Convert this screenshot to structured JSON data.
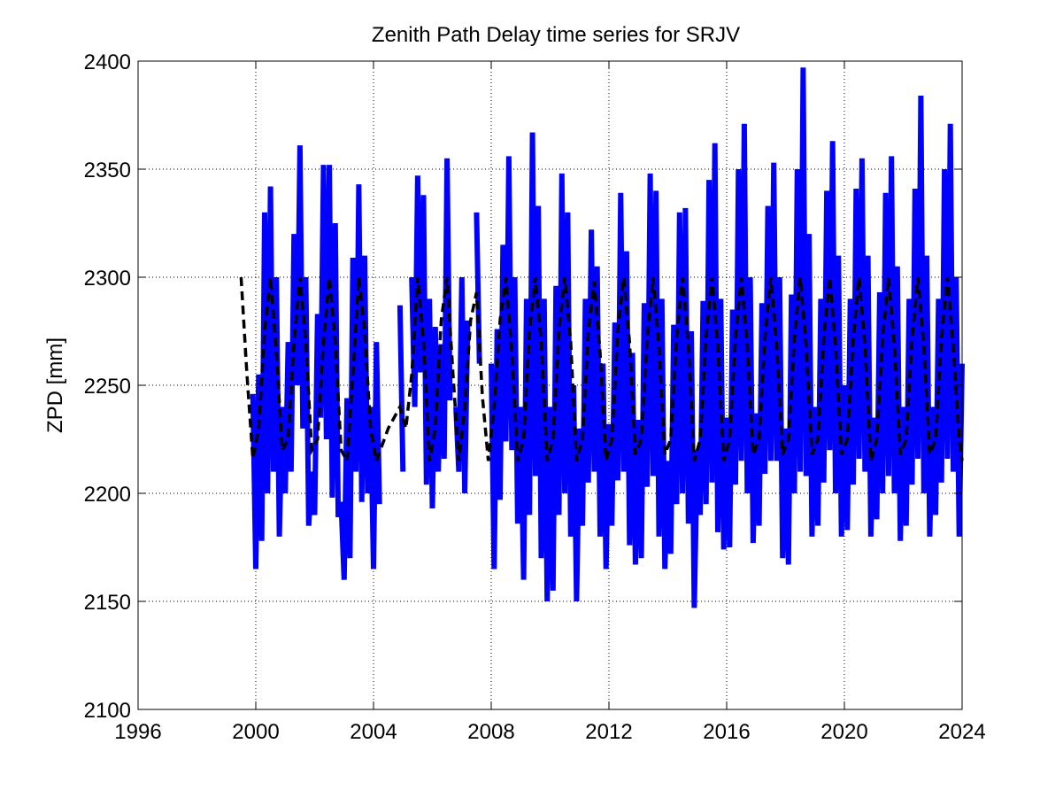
{
  "chart_data": {
    "type": "line",
    "title": "Zenith Path Delay time series for SRJV",
    "xlabel": "",
    "ylabel": "ZPD [mm]",
    "xlim": [
      1996,
      2024
    ],
    "ylim": [
      2100,
      2400
    ],
    "xticks": [
      1996,
      2000,
      2004,
      2008,
      2012,
      2016,
      2020,
      2024
    ],
    "yticks": [
      2100,
      2150,
      2200,
      2250,
      2300,
      2350,
      2400
    ],
    "grid": true,
    "grid_style": "dotted",
    "series": [
      {
        "style": "solid",
        "color": "#0000ff",
        "description_type": "observations",
        "segments": [
          {
            "x": [
              1999.6,
              1999.65
            ],
            "y": [
              2265,
              2265
            ]
          },
          {
            "x": [
              1999.9,
              2000.0,
              2000.1,
              2000.2,
              2000.3,
              2000.4,
              2000.5,
              2000.6,
              2000.7,
              2000.8,
              2000.9,
              2001.0,
              2001.1,
              2001.2,
              2001.3,
              2001.4,
              2001.5,
              2001.6,
              2001.7,
              2001.8,
              2001.9,
              2002.0,
              2002.1,
              2002.2,
              2002.3,
              2002.4,
              2002.5,
              2002.6,
              2002.7,
              2002.8,
              2002.9,
              2003.0,
              2003.1,
              2003.2,
              2003.3,
              2003.4,
              2003.5,
              2003.6,
              2003.7,
              2003.8,
              2003.9,
              2004.0,
              2004.1,
              2004.2
            ],
            "y": [
              2246,
              2165,
              2255,
              2178,
              2330,
              2200,
              2342,
              2210,
              2300,
              2180,
              2240,
              2200,
              2270,
              2210,
              2320,
              2250,
              2361,
              2230,
              2300,
              2185,
              2210,
              2190,
              2283,
              2235,
              2352,
              2225,
              2352,
              2198,
              2325,
              2189,
              2196,
              2160,
              2244,
              2170,
              2309,
              2210,
              2343,
              2196,
              2310,
              2200,
              2240,
              2165,
              2270,
              2195
            ]
          },
          {
            "x": [
              2004.9,
              2005.0
            ],
            "y": [
              2287,
              2210
            ]
          },
          {
            "x": [
              2005.3,
              2005.4,
              2005.5,
              2005.6,
              2005.7,
              2005.8,
              2005.9,
              2006.0,
              2006.1,
              2006.2,
              2006.3,
              2006.4,
              2006.5,
              2006.6
            ],
            "y": [
              2300,
              2240,
              2347,
              2256,
              2338,
              2204,
              2290,
              2193,
              2277,
              2210,
              2269,
              2216,
              2355,
              2243
            ]
          },
          {
            "x": [
              2006.8,
              2006.9,
              2007.0,
              2007.1,
              2007.2
            ],
            "y": [
              2240,
              2210,
              2300,
              2200,
              2280
            ]
          },
          {
            "x": [
              2007.5,
              2007.6
            ],
            "y": [
              2330,
              2260
            ]
          },
          {
            "x": [
              2008.0,
              2008.1,
              2008.2,
              2008.3,
              2008.4,
              2008.5,
              2008.6,
              2008.7,
              2008.8,
              2008.9,
              2009.0,
              2009.1,
              2009.2,
              2009.3,
              2009.4,
              2009.5,
              2009.6,
              2009.7,
              2009.8,
              2009.9,
              2010.0,
              2010.1,
              2010.2,
              2010.3,
              2010.4,
              2010.5,
              2010.6,
              2010.7,
              2010.8,
              2010.9,
              2011.0,
              2011.1,
              2011.2,
              2011.3,
              2011.4,
              2011.5,
              2011.6,
              2011.7,
              2011.8,
              2011.9,
              2012.0,
              2012.1,
              2012.2,
              2012.3,
              2012.4,
              2012.5,
              2012.6,
              2012.7,
              2012.8,
              2012.9,
              2013.0,
              2013.1,
              2013.2,
              2013.3,
              2013.4,
              2013.5,
              2013.6,
              2013.7,
              2013.8,
              2013.9,
              2014.0,
              2014.1,
              2014.2,
              2014.3,
              2014.4,
              2014.5,
              2014.6,
              2014.7,
              2014.8,
              2014.9,
              2015.0,
              2015.1,
              2015.2,
              2015.3,
              2015.4,
              2015.5,
              2015.6,
              2015.7,
              2015.8,
              2015.9,
              2016.0,
              2016.1,
              2016.2,
              2016.3,
              2016.4,
              2016.5,
              2016.6,
              2016.7,
              2016.8,
              2016.9,
              2017.0,
              2017.1,
              2017.2,
              2017.3,
              2017.4,
              2017.5,
              2017.6,
              2017.7,
              2017.8,
              2017.9,
              2018.0,
              2018.1,
              2018.2,
              2018.3,
              2018.4,
              2018.5,
              2018.6,
              2018.7,
              2018.8,
              2018.9,
              2019.0,
              2019.1,
              2019.2,
              2019.3,
              2019.4,
              2019.5,
              2019.6,
              2019.7,
              2019.8,
              2019.9,
              2020.0,
              2020.1,
              2020.2,
              2020.3,
              2020.4,
              2020.5,
              2020.6,
              2020.7,
              2020.8,
              2020.9,
              2021.0,
              2021.1,
              2021.2,
              2021.3,
              2021.4,
              2021.5,
              2021.6,
              2021.7,
              2021.8,
              2021.9,
              2022.0,
              2022.1,
              2022.2,
              2022.3,
              2022.4,
              2022.5,
              2022.6,
              2022.7,
              2022.8,
              2022.9,
              2023.0,
              2023.1,
              2023.2,
              2023.3,
              2023.4,
              2023.5,
              2023.6,
              2023.7,
              2023.8,
              2023.9,
              2024.0
            ],
            "y": [
              2260,
              2165,
              2276,
              2197,
              2315,
              2224,
              2356,
              2220,
              2300,
              2186,
              2240,
              2160,
              2290,
              2190,
              2367,
              2208,
              2333,
              2170,
              2290,
              2150,
              2240,
              2155,
              2296,
              2190,
              2348,
              2200,
              2330,
              2180,
              2250,
              2150,
              2230,
              2185,
              2290,
              2205,
              2322,
              2210,
              2305,
              2180,
              2260,
              2165,
              2232,
              2185,
              2279,
              2206,
              2339,
              2210,
              2312,
              2176,
              2265,
              2167,
              2234,
              2170,
              2288,
              2203,
              2348,
              2208,
              2340,
              2180,
              2290,
              2165,
              2215,
              2172,
              2278,
              2195,
              2330,
              2200,
              2332,
              2186,
              2275,
              2147,
              2220,
              2190,
              2289,
              2195,
              2345,
              2205,
              2362,
              2182,
              2290,
              2174,
              2235,
              2175,
              2285,
              2204,
              2350,
              2215,
              2371,
              2200,
              2300,
              2177,
              2237,
              2185,
              2288,
              2209,
              2333,
              2215,
              2353,
              2215,
              2300,
              2170,
              2230,
              2167,
              2292,
              2200,
              2350,
              2210,
              2397,
              2208,
              2320,
              2180,
              2240,
              2185,
              2290,
              2205,
              2340,
              2220,
              2363,
              2200,
              2310,
              2180,
              2250,
              2183,
              2290,
              2204,
              2341,
              2216,
              2355,
              2210,
              2310,
              2180,
              2235,
              2188,
              2293,
              2200,
              2339,
              2208,
              2356,
              2200,
              2305,
              2178,
              2240,
              2185,
              2290,
              2204,
              2341,
              2216,
              2384,
              2200,
              2310,
              2180,
              2240,
              2190,
              2290,
              2205,
              2350,
              2216,
              2371,
              2210,
              2300,
              2180,
              2260
            ]
          }
        ]
      },
      {
        "style": "dashed",
        "color": "#000000",
        "description_type": "seasonal model",
        "x": [
          1999.5,
          1999.7,
          1999.9,
          2000.1,
          2000.3,
          2000.5,
          2000.7,
          2000.9,
          2001.1,
          2001.3,
          2001.5,
          2001.7,
          2001.9,
          2002.1,
          2002.3,
          2002.5,
          2002.7,
          2002.9,
          2003.1,
          2003.3,
          2003.5,
          2003.7,
          2003.9,
          2004.1,
          2004.5,
          2004.9,
          2005.1,
          2005.3,
          2005.5,
          2005.7,
          2005.9,
          2006.1,
          2006.3,
          2006.5,
          2006.7,
          2006.9,
          2007.1,
          2007.3,
          2007.5,
          2007.7,
          2007.9,
          2008.1,
          2008.3,
          2008.5,
          2008.7,
          2008.9,
          2009.1,
          2009.3,
          2009.5,
          2009.7,
          2009.9,
          2010.1,
          2010.3,
          2010.5,
          2010.7,
          2010.9,
          2011.1,
          2011.3,
          2011.5,
          2011.7,
          2011.9,
          2012.1,
          2012.3,
          2012.5,
          2012.7,
          2012.9,
          2013.1,
          2013.3,
          2013.5,
          2013.7,
          2013.9,
          2014.1,
          2014.3,
          2014.5,
          2014.7,
          2014.9,
          2015.1,
          2015.3,
          2015.5,
          2015.7,
          2015.9,
          2016.1,
          2016.3,
          2016.5,
          2016.7,
          2016.9,
          2017.1,
          2017.3,
          2017.5,
          2017.7,
          2017.9,
          2018.1,
          2018.3,
          2018.5,
          2018.7,
          2018.9,
          2019.1,
          2019.3,
          2019.5,
          2019.7,
          2019.9,
          2020.1,
          2020.3,
          2020.5,
          2020.7,
          2020.9,
          2021.1,
          2021.3,
          2021.5,
          2021.7,
          2021.9,
          2022.1,
          2022.3,
          2022.5,
          2022.7,
          2022.9,
          2023.1,
          2023.3,
          2023.5,
          2023.7,
          2023.9,
          2024.0
        ],
        "y": [
          2300,
          2255,
          2216,
          2230,
          2275,
          2300,
          2265,
          2220,
          2225,
          2270,
          2300,
          2270,
          2220,
          2225,
          2270,
          2300,
          2270,
          2220,
          2215,
          2255,
          2300,
          2275,
          2230,
          2215,
          2230,
          2240,
          2230,
          2255,
          2300,
          2270,
          2215,
          2230,
          2280,
          2300,
          2255,
          2215,
          2240,
          2280,
          2293,
          2245,
          2215,
          2240,
          2280,
          2300,
          2265,
          2215,
          2225,
          2275,
          2300,
          2270,
          2215,
          2225,
          2275,
          2300,
          2270,
          2215,
          2225,
          2275,
          2298,
          2265,
          2215,
          2225,
          2275,
          2300,
          2270,
          2218,
          2225,
          2272,
          2300,
          2268,
          2218,
          2225,
          2272,
          2300,
          2268,
          2215,
          2225,
          2272,
          2300,
          2268,
          2215,
          2225,
          2272,
          2300,
          2268,
          2218,
          2225,
          2272,
          2300,
          2268,
          2218,
          2225,
          2272,
          2300,
          2268,
          2218,
          2225,
          2272,
          2300,
          2268,
          2218,
          2225,
          2272,
          2300,
          2268,
          2215,
          2225,
          2272,
          2300,
          2268,
          2218,
          2225,
          2272,
          2300,
          2268,
          2218,
          2225,
          2272,
          2300,
          2268,
          2225,
          2215
        ]
      }
    ]
  }
}
